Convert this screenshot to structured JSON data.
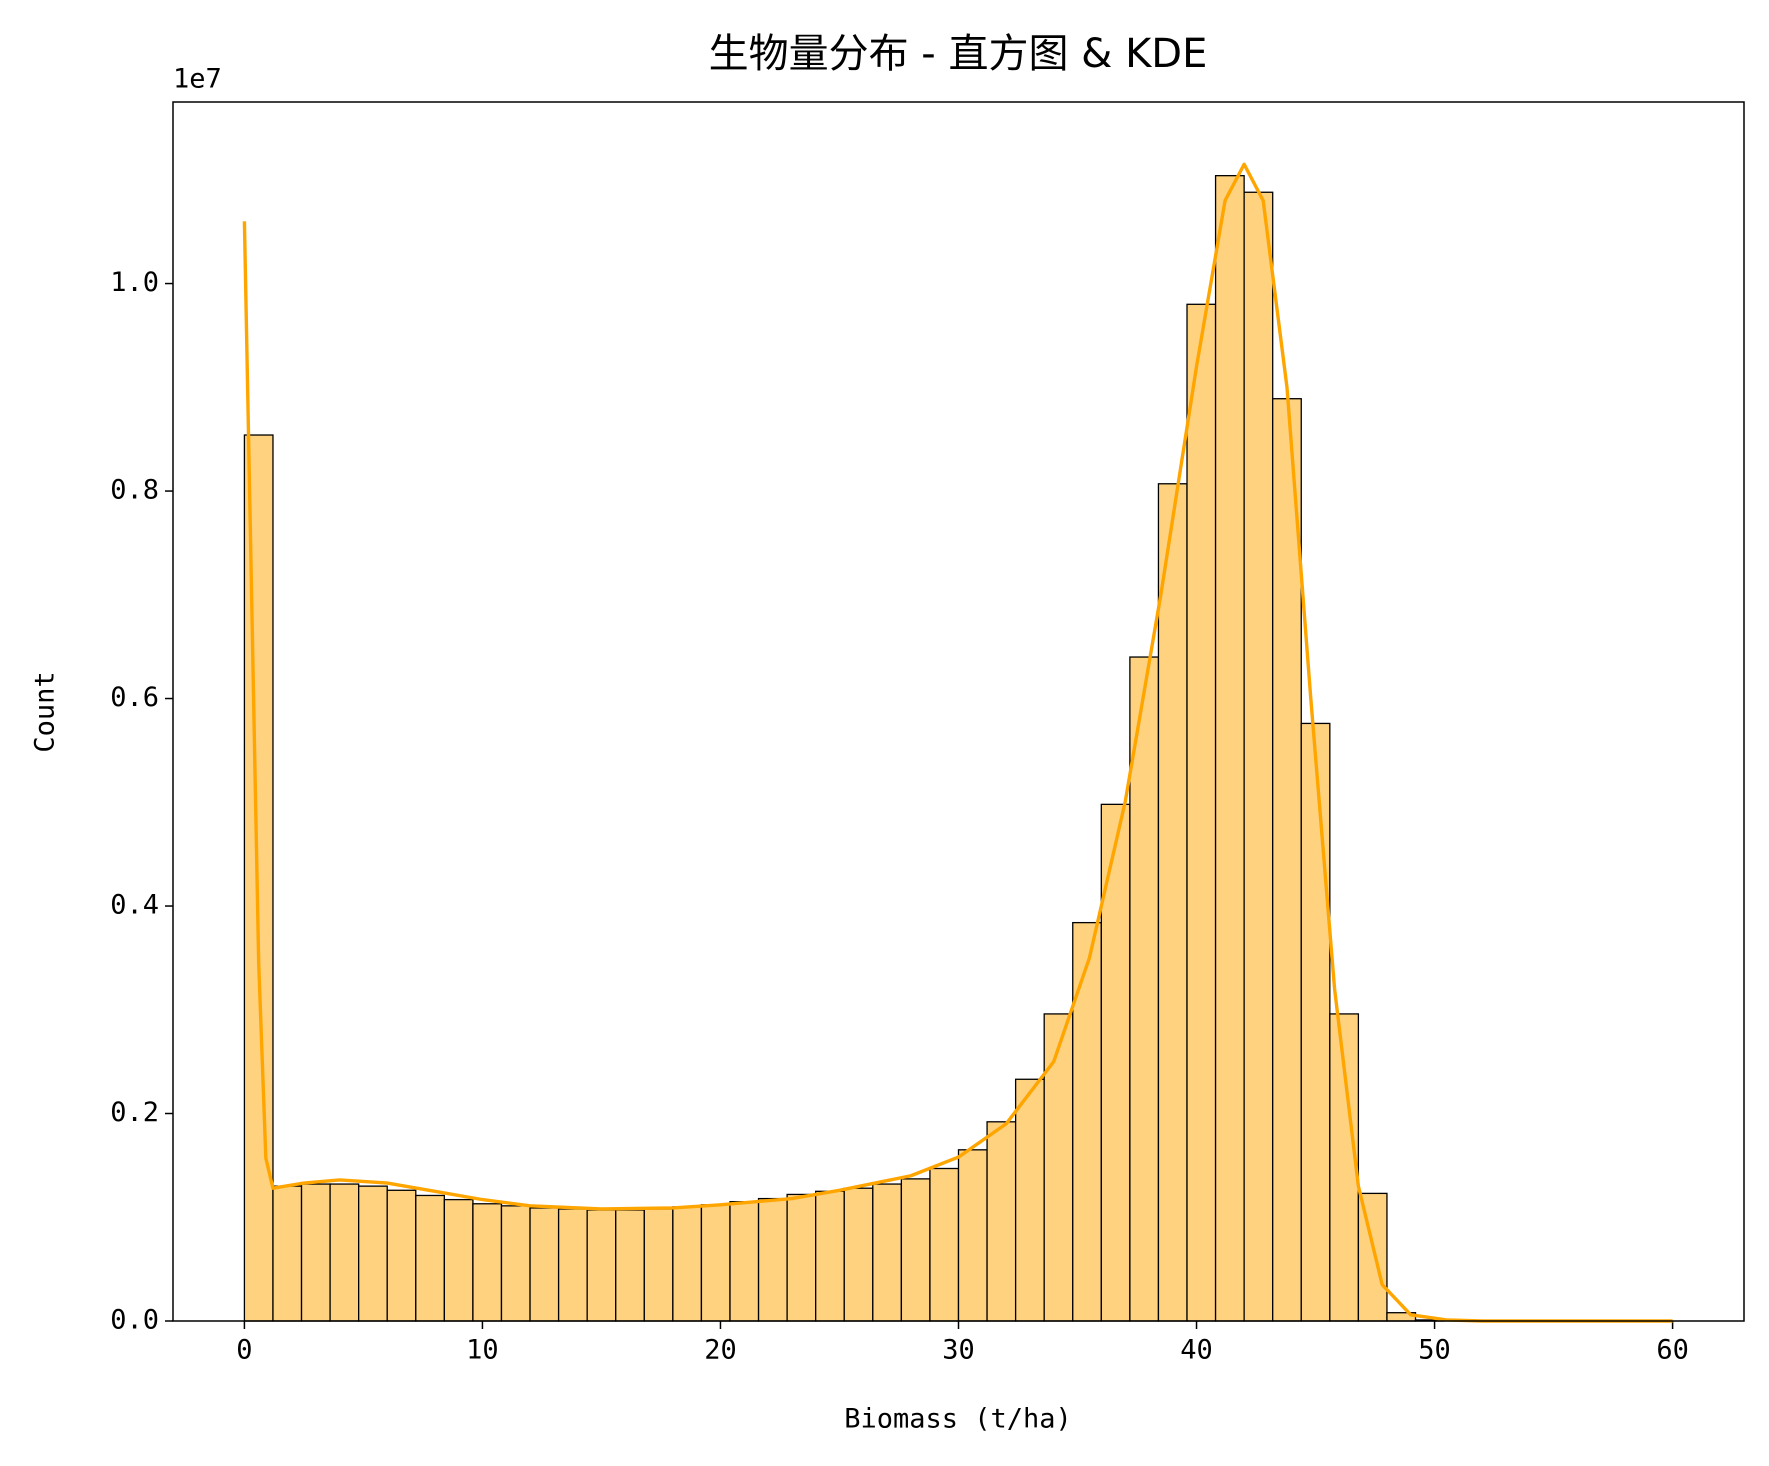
{
  "chart_data": {
    "type": "histogram",
    "title": "生物量分布 - 直方图 & KDE",
    "x_label": "Biomass (t/ha)",
    "y_label": "Count",
    "y_offset_label": "1e7",
    "bins": [
      0,
      1.2,
      2.4,
      3.6,
      4.8,
      6,
      7.2,
      8.4,
      9.6,
      10.8,
      12,
      13.2,
      14.4,
      15.6,
      16.8,
      18,
      19.2,
      20.4,
      21.6,
      22.8,
      24,
      25.2,
      26.4,
      27.6,
      28.8,
      30,
      31.2,
      32.4,
      33.6,
      34.8,
      36,
      37.2,
      38.4,
      39.6,
      40.8,
      42,
      43.2,
      44.4,
      45.6,
      46.8,
      48,
      49.2,
      50.4,
      51.6,
      52.8,
      54,
      55.2,
      56.4,
      57.6,
      58.8,
      60
    ],
    "values": [
      0.854,
      0.13,
      0.132,
      0.132,
      0.13,
      0.126,
      0.121,
      0.117,
      0.113,
      0.111,
      0.109,
      0.108,
      0.107,
      0.107,
      0.108,
      0.11,
      0.112,
      0.115,
      0.118,
      0.122,
      0.125,
      0.128,
      0.132,
      0.137,
      0.147,
      0.165,
      0.192,
      0.233,
      0.296,
      0.384,
      0.498,
      0.64,
      0.807,
      0.98,
      1.104,
      1.088,
      0.889,
      0.576,
      0.296,
      0.123,
      0.008,
      0.001,
      0,
      0,
      0,
      0,
      0,
      0,
      0,
      0
    ],
    "color": "#ffd280",
    "edgecolor": "#000000",
    "kde": {
      "color": "#ffa500",
      "x": [
        0,
        0.6,
        0.9,
        1.2,
        2.5,
        4,
        6,
        8,
        10,
        12,
        15,
        18,
        20,
        23,
        25,
        28,
        30,
        32,
        34,
        35.5,
        37,
        38.5,
        40,
        41.2,
        42,
        42.8,
        43.8,
        44.8,
        45.8,
        46.8,
        47.8,
        49,
        50.5,
        52,
        60
      ],
      "values": [
        1.06,
        0.345,
        0.157,
        0.128,
        0.133,
        0.136,
        0.133,
        0.125,
        0.117,
        0.111,
        0.108,
        0.109,
        0.112,
        0.118,
        0.126,
        0.14,
        0.158,
        0.19,
        0.25,
        0.35,
        0.5,
        0.7,
        0.92,
        1.08,
        1.115,
        1.08,
        0.9,
        0.6,
        0.32,
        0.13,
        0.035,
        0.006,
        0.001,
        0,
        0
      ]
    },
    "xlim": [
      -3,
      63
    ],
    "xticks": [
      0,
      10,
      20,
      30,
      40,
      50,
      60
    ],
    "ylim": [
      0,
      1.175
    ],
    "yticks": [
      {
        "value": 0,
        "label": "0.0"
      },
      0.2,
      0.4,
      0.6,
      0.8,
      {
        "value": 1,
        "label": "1.0"
      }
    ]
  }
}
